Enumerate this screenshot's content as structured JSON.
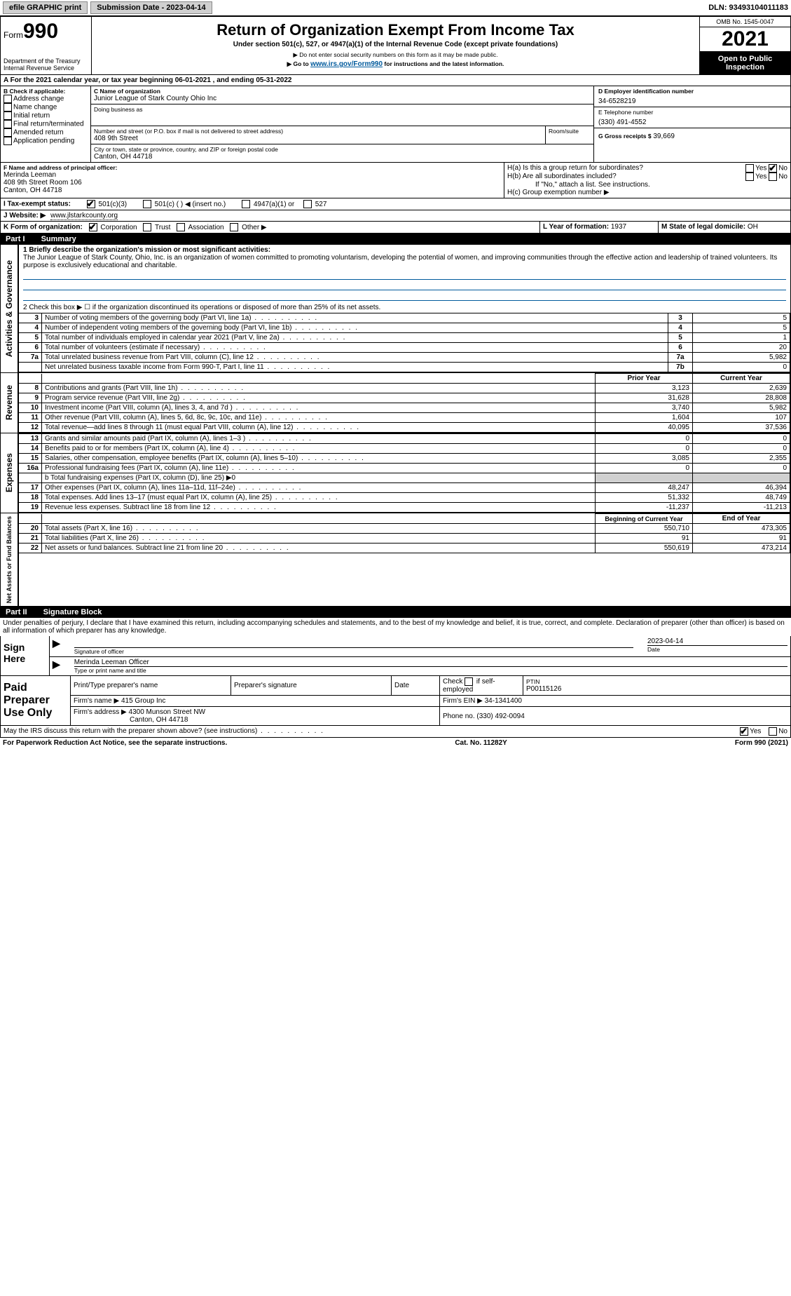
{
  "topbar": {
    "efile": "efile GRAPHIC print",
    "submission": "Submission Date - 2023-04-14",
    "dln": "DLN: 93493104011183"
  },
  "header": {
    "form_label": "Form",
    "form_num": "990",
    "title": "Return of Organization Exempt From Income Tax",
    "subtitle": "Under section 501(c), 527, or 4947(a)(1) of the Internal Revenue Code (except private foundations)",
    "warn": "▶ Do not enter social security numbers on this form as it may be made public.",
    "goto_pre": "▶ Go to ",
    "goto_link": "www.irs.gov/Form990",
    "goto_post": " for instructions and the latest information.",
    "dept": "Department of the Treasury",
    "irs": "Internal Revenue Service",
    "omb": "OMB No. 1545-0047",
    "year": "2021",
    "open": "Open to Public Inspection"
  },
  "a_line": {
    "pre": "A For the 2021 calendar year, or tax year beginning ",
    "begin": "06-01-2021",
    "mid": " , and ending ",
    "end": "05-31-2022"
  },
  "b": {
    "label": "B Check if applicable:",
    "items": [
      "Address change",
      "Name change",
      "Initial return",
      "Final return/terminated",
      "Amended return",
      "Application pending"
    ]
  },
  "c": {
    "label": "C Name of organization",
    "name": "Junior League of Stark County Ohio Inc",
    "dba_label": "Doing business as",
    "dba": "",
    "addr_label": "Number and street (or P.O. box if mail is not delivered to street address)",
    "room_label": "Room/suite",
    "addr": "408 9th Street",
    "city_label": "City or town, state or province, country, and ZIP or foreign postal code",
    "city": "Canton, OH  44718"
  },
  "d": {
    "label": "D Employer identification number",
    "val": "34-6528219"
  },
  "e": {
    "label": "E Telephone number",
    "val": "(330) 491-4552"
  },
  "g": {
    "label": "G Gross receipts $",
    "val": "39,669"
  },
  "f": {
    "label": "F Name and address of principal officer:",
    "name": "Merinda Leeman",
    "addr1": "408 9th Street Room 106",
    "addr2": "Canton, OH  44718"
  },
  "h": {
    "a_label": "H(a)  Is this a group return for subordinates?",
    "b_label": "H(b)  Are all subordinates included?",
    "note": "If \"No,\" attach a list. See instructions.",
    "c_label": "H(c)  Group exemption number ▶",
    "yes": "Yes",
    "no": "No"
  },
  "i": {
    "label": "I  Tax-exempt status:",
    "opts": [
      "501(c)(3)",
      "501(c) (  ) ◀ (insert no.)",
      "4947(a)(1) or",
      "527"
    ]
  },
  "j": {
    "label": "J  Website: ▶",
    "val": "www.jlstarkcounty.org"
  },
  "k": {
    "label": "K Form of organization:",
    "opts": [
      "Corporation",
      "Trust",
      "Association",
      "Other ▶"
    ]
  },
  "l": {
    "label": "L Year of formation:",
    "val": "1937"
  },
  "m": {
    "label": "M State of legal domicile:",
    "val": "OH"
  },
  "part1": {
    "label": "Part I",
    "title": "Summary"
  },
  "gov": {
    "side": "Activities & Governance",
    "l1_label": "1  Briefly describe the organization's mission or most significant activities:",
    "l1_text": "The Junior League of Stark County, Ohio, Inc. is an organization of women committed to promoting voluntarism, developing the potential of women, and improving communities through the effective action and leadership of trained volunteers. Its purpose is exclusively educational and charitable.",
    "l2": "2  Check this box ▶ ☐  if the organization discontinued its operations or disposed of more than 25% of its net assets.",
    "rows": [
      {
        "n": "3",
        "d": "Number of voting members of the governing body (Part VI, line 1a)",
        "b": "3",
        "v": "5"
      },
      {
        "n": "4",
        "d": "Number of independent voting members of the governing body (Part VI, line 1b)",
        "b": "4",
        "v": "5"
      },
      {
        "n": "5",
        "d": "Total number of individuals employed in calendar year 2021 (Part V, line 2a)",
        "b": "5",
        "v": "1"
      },
      {
        "n": "6",
        "d": "Total number of volunteers (estimate if necessary)",
        "b": "6",
        "v": "20"
      },
      {
        "n": "7a",
        "d": "Total unrelated business revenue from Part VIII, column (C), line 12",
        "b": "7a",
        "v": "5,982"
      },
      {
        "n": "",
        "d": "Net unrelated business taxable income from Form 990-T, Part I, line 11",
        "b": "7b",
        "v": "0"
      }
    ]
  },
  "rev": {
    "side": "Revenue",
    "hdr_prior": "Prior Year",
    "hdr_curr": "Current Year",
    "rows": [
      {
        "n": "8",
        "d": "Contributions and grants (Part VIII, line 1h)",
        "p": "3,123",
        "c": "2,639"
      },
      {
        "n": "9",
        "d": "Program service revenue (Part VIII, line 2g)",
        "p": "31,628",
        "c": "28,808"
      },
      {
        "n": "10",
        "d": "Investment income (Part VIII, column (A), lines 3, 4, and 7d )",
        "p": "3,740",
        "c": "5,982"
      },
      {
        "n": "11",
        "d": "Other revenue (Part VIII, column (A), lines 5, 6d, 8c, 9c, 10c, and 11e)",
        "p": "1,604",
        "c": "107"
      },
      {
        "n": "12",
        "d": "Total revenue—add lines 8 through 11 (must equal Part VIII, column (A), line 12)",
        "p": "40,095",
        "c": "37,536"
      }
    ]
  },
  "exp": {
    "side": "Expenses",
    "rows": [
      {
        "n": "13",
        "d": "Grants and similar amounts paid (Part IX, column (A), lines 1–3 )",
        "p": "0",
        "c": "0"
      },
      {
        "n": "14",
        "d": "Benefits paid to or for members (Part IX, column (A), line 4)",
        "p": "0",
        "c": "0"
      },
      {
        "n": "15",
        "d": "Salaries, other compensation, employee benefits (Part IX, column (A), lines 5–10)",
        "p": "3,085",
        "c": "2,355"
      },
      {
        "n": "16a",
        "d": "Professional fundraising fees (Part IX, column (A), line 11e)",
        "p": "0",
        "c": "0"
      }
    ],
    "l16b": "b  Total fundraising expenses (Part IX, column (D), line 25) ▶0",
    "rows2": [
      {
        "n": "17",
        "d": "Other expenses (Part IX, column (A), lines 11a–11d, 11f–24e)",
        "p": "48,247",
        "c": "46,394"
      },
      {
        "n": "18",
        "d": "Total expenses. Add lines 13–17 (must equal Part IX, column (A), line 25)",
        "p": "51,332",
        "c": "48,749"
      },
      {
        "n": "19",
        "d": "Revenue less expenses. Subtract line 18 from line 12",
        "p": "-11,237",
        "c": "-11,213"
      }
    ]
  },
  "net": {
    "side": "Net Assets or Fund Balances",
    "hdr_begin": "Beginning of Current Year",
    "hdr_end": "End of Year",
    "rows": [
      {
        "n": "20",
        "d": "Total assets (Part X, line 16)",
        "p": "550,710",
        "c": "473,305"
      },
      {
        "n": "21",
        "d": "Total liabilities (Part X, line 26)",
        "p": "91",
        "c": "91"
      },
      {
        "n": "22",
        "d": "Net assets or fund balances. Subtract line 21 from line 20",
        "p": "550,619",
        "c": "473,214"
      }
    ]
  },
  "part2": {
    "label": "Part II",
    "title": "Signature Block"
  },
  "sig": {
    "penalty": "Under penalties of perjury, I declare that I have examined this return, including accompanying schedules and statements, and to the best of my knowledge and belief, it is true, correct, and complete. Declaration of preparer (other than officer) is based on all information of which preparer has any knowledge.",
    "sign_here": "Sign Here",
    "sig_officer": "Signature of officer",
    "date_label": "Date",
    "date": "2023-04-14",
    "name": "Merinda Leeman  Officer",
    "name_label": "Type or print name and title"
  },
  "prep": {
    "left": "Paid Preparer Use Only",
    "h1": "Print/Type preparer's name",
    "h2": "Preparer's signature",
    "h3": "Date",
    "h4_pre": "Check",
    "h4_post": "if self-employed",
    "h5": "PTIN",
    "ptin": "P00115126",
    "firm_name_l": "Firm's name   ▶",
    "firm_name": "415 Group Inc",
    "firm_ein_l": "Firm's EIN ▶",
    "firm_ein": "34-1341400",
    "firm_addr_l": "Firm's address ▶",
    "firm_addr1": "4300 Munson Street NW",
    "firm_addr2": "Canton, OH  44718",
    "phone_l": "Phone no.",
    "phone": "(330) 492-0094"
  },
  "discuss": {
    "q": "May the IRS discuss this return with the preparer shown above? (see instructions)",
    "yes": "Yes",
    "no": "No"
  },
  "footer": {
    "left": "For Paperwork Reduction Act Notice, see the separate instructions.",
    "mid": "Cat. No. 11282Y",
    "right_pre": "Form ",
    "right_b": "990",
    "right_post": " (2021)"
  }
}
